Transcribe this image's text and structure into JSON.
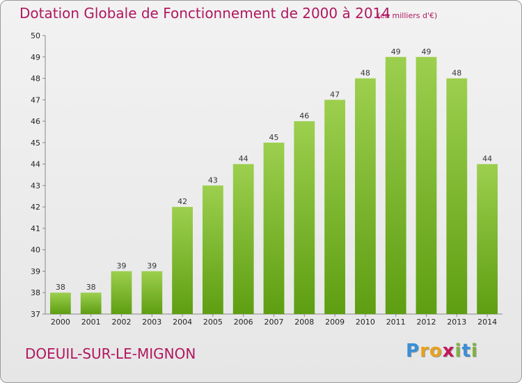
{
  "header": {
    "title": "Dotation Globale de Fonctionnement de 2000 à 2014",
    "subtitle": "(en milliers d'€)"
  },
  "footer": {
    "commune": "DOEUIL-SUR-LE-MIGNON",
    "logo_letters": [
      "P",
      "r",
      "o",
      "x",
      "i",
      "t",
      "i"
    ],
    "logo_colors": [
      "#3a8fd8",
      "#e8a21c",
      "#e8a21c",
      "#c2185b",
      "#7cb342",
      "#3a8fd8",
      "#7cb342"
    ]
  },
  "colors": {
    "bar_top": "#9ccf4e",
    "bar_bottom": "#5e9e12",
    "title": "#b0175f"
  },
  "chart_data": {
    "type": "bar",
    "title": "Dotation Globale de Fonctionnement de 2000 à 2014",
    "subtitle": "(en milliers d'€)",
    "categories": [
      "2000",
      "2001",
      "2002",
      "2003",
      "2004",
      "2005",
      "2006",
      "2007",
      "2008",
      "2009",
      "2010",
      "2011",
      "2012",
      "2013",
      "2014"
    ],
    "values": [
      38,
      38,
      39,
      39,
      42,
      43,
      44,
      45,
      46,
      47,
      48,
      49,
      49,
      48,
      44
    ],
    "ylim": [
      37,
      50
    ],
    "yticks": [
      37,
      38,
      39,
      40,
      41,
      42,
      43,
      44,
      45,
      46,
      47,
      48,
      49,
      50
    ],
    "xlabel": "",
    "ylabel": "",
    "grid": false,
    "data_labels": true
  }
}
